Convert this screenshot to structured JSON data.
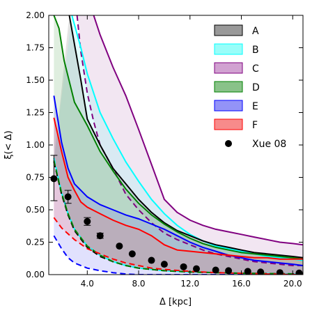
{
  "chart_data": {
    "type": "area",
    "title": "",
    "xlabel": "Δ [kpc]",
    "ylabel": "ξ(< Δ)",
    "xlim": [
      1.0,
      20.8
    ],
    "ylim": [
      0.0,
      2.0
    ],
    "xticks": [
      4.0,
      8.0,
      12.0,
      16.0,
      20.0
    ],
    "xtick_labels": [
      "4.0",
      "8.0",
      "12.0",
      "16.0",
      "20.0"
    ],
    "yticks": [
      0.0,
      0.25,
      0.5,
      0.75,
      1.0,
      1.25,
      1.5,
      1.75,
      2.0
    ],
    "ytick_labels": [
      "0.00",
      "0.25",
      "0.50",
      "0.75",
      "1.00",
      "1.25",
      "1.50",
      "1.75",
      "2.00"
    ],
    "grid": false,
    "legend_position": "top-right",
    "colors": {
      "A": {
        "fill": "#808080",
        "line": "#000000"
      },
      "B": {
        "fill": "#7ffcf8",
        "line": "#00ffff"
      },
      "C": {
        "fill": "#c68bc6",
        "line": "#800080"
      },
      "D": {
        "fill": "#6cb36c",
        "line": "#008000"
      },
      "E": {
        "fill": "#7878f5",
        "line": "#0000ff"
      },
      "F": {
        "fill": "#f56e6e",
        "line": "#ff0000"
      },
      "xue": "#000000"
    },
    "series": [
      {
        "name": "C",
        "upper": [
          [
            4.5,
            2.0
          ],
          [
            5.0,
            1.85
          ],
          [
            6.0,
            1.6
          ],
          [
            7.0,
            1.38
          ],
          [
            8.0,
            1.12
          ],
          [
            9.0,
            0.85
          ],
          [
            10.0,
            0.58
          ],
          [
            11.0,
            0.48
          ],
          [
            12.0,
            0.42
          ],
          [
            13.0,
            0.38
          ],
          [
            14.0,
            0.35
          ],
          [
            15.0,
            0.33
          ],
          [
            16.0,
            0.31
          ],
          [
            17.0,
            0.29
          ],
          [
            18.0,
            0.27
          ],
          [
            19.0,
            0.25
          ],
          [
            20.0,
            0.24
          ],
          [
            20.8,
            0.23
          ]
        ],
        "lower": [
          [
            3.2,
            2.0
          ],
          [
            3.5,
            1.72
          ],
          [
            4.0,
            1.4
          ],
          [
            4.5,
            1.18
          ],
          [
            5.0,
            1.0
          ],
          [
            6.0,
            0.82
          ],
          [
            7.0,
            0.62
          ],
          [
            8.0,
            0.5
          ],
          [
            9.0,
            0.4
          ],
          [
            10.0,
            0.32
          ],
          [
            11.0,
            0.27
          ],
          [
            12.0,
            0.23
          ],
          [
            13.0,
            0.19
          ],
          [
            14.0,
            0.16
          ],
          [
            15.0,
            0.14
          ],
          [
            16.0,
            0.12
          ],
          [
            17.0,
            0.1
          ],
          [
            18.0,
            0.09
          ],
          [
            19.0,
            0.08
          ],
          [
            20.0,
            0.07
          ],
          [
            20.8,
            0.07
          ]
        ]
      },
      {
        "name": "B",
        "upper": [
          [
            2.8,
            2.0
          ],
          [
            3.5,
            1.75
          ],
          [
            4.0,
            1.55
          ],
          [
            5.0,
            1.25
          ],
          [
            6.0,
            1.05
          ],
          [
            7.0,
            0.87
          ],
          [
            8.0,
            0.72
          ],
          [
            9.0,
            0.58
          ],
          [
            10.0,
            0.47
          ],
          [
            11.0,
            0.38
          ],
          [
            12.0,
            0.31
          ],
          [
            13.0,
            0.26
          ],
          [
            14.0,
            0.22
          ],
          [
            15.0,
            0.2
          ],
          [
            16.0,
            0.18
          ],
          [
            17.0,
            0.16
          ],
          [
            18.0,
            0.14
          ],
          [
            19.0,
            0.13
          ],
          [
            20.0,
            0.12
          ],
          [
            20.8,
            0.11
          ]
        ],
        "lower": [
          [
            1.4,
            0.9
          ],
          [
            2.0,
            0.63
          ],
          [
            2.5,
            0.47
          ],
          [
            3.0,
            0.35
          ],
          [
            4.0,
            0.22
          ],
          [
            5.0,
            0.15
          ],
          [
            6.0,
            0.1
          ],
          [
            7.0,
            0.07
          ],
          [
            8.0,
            0.05
          ],
          [
            10.0,
            0.03
          ],
          [
            12.0,
            0.02
          ],
          [
            14.0,
            0.015
          ],
          [
            16.0,
            0.01
          ],
          [
            18.0,
            0.008
          ],
          [
            20.8,
            0.005
          ]
        ]
      },
      {
        "name": "A",
        "upper": [
          [
            2.6,
            2.0
          ],
          [
            3.5,
            1.5
          ],
          [
            4.0,
            1.2
          ],
          [
            5.0,
            1.0
          ],
          [
            6.0,
            0.82
          ],
          [
            7.0,
            0.7
          ],
          [
            8.0,
            0.58
          ],
          [
            9.0,
            0.48
          ],
          [
            10.0,
            0.4
          ],
          [
            11.0,
            0.34
          ],
          [
            12.0,
            0.3
          ],
          [
            13.0,
            0.26
          ],
          [
            14.0,
            0.23
          ],
          [
            15.0,
            0.21
          ],
          [
            16.0,
            0.19
          ],
          [
            17.0,
            0.17
          ],
          [
            18.0,
            0.16
          ],
          [
            19.0,
            0.15
          ],
          [
            20.0,
            0.14
          ],
          [
            20.8,
            0.13
          ]
        ],
        "lower": [
          [
            1.4,
            0.87
          ],
          [
            2.0,
            0.62
          ],
          [
            2.5,
            0.46
          ],
          [
            3.0,
            0.34
          ],
          [
            4.0,
            0.21
          ],
          [
            5.0,
            0.14
          ],
          [
            6.0,
            0.1
          ],
          [
            7.0,
            0.07
          ],
          [
            8.0,
            0.05
          ],
          [
            10.0,
            0.03
          ],
          [
            12.0,
            0.02
          ],
          [
            14.0,
            0.015
          ],
          [
            16.0,
            0.01
          ],
          [
            20.8,
            0.005
          ]
        ]
      },
      {
        "name": "D",
        "upper": [
          [
            1.4,
            2.0
          ],
          [
            1.8,
            1.9
          ],
          [
            2.2,
            1.65
          ],
          [
            3.0,
            1.33
          ],
          [
            4.0,
            1.15
          ],
          [
            5.0,
            0.95
          ],
          [
            6.0,
            0.8
          ],
          [
            7.0,
            0.66
          ],
          [
            8.0,
            0.55
          ],
          [
            9.0,
            0.46
          ],
          [
            10.0,
            0.39
          ],
          [
            11.0,
            0.33
          ],
          [
            12.0,
            0.28
          ],
          [
            13.0,
            0.24
          ],
          [
            14.0,
            0.21
          ],
          [
            15.0,
            0.19
          ],
          [
            16.0,
            0.17
          ],
          [
            17.0,
            0.16
          ],
          [
            18.0,
            0.15
          ],
          [
            19.0,
            0.14
          ],
          [
            20.0,
            0.13
          ],
          [
            20.8,
            0.12
          ]
        ],
        "lower": [
          [
            1.4,
            0.88
          ],
          [
            2.0,
            0.63
          ],
          [
            2.5,
            0.47
          ],
          [
            3.0,
            0.35
          ],
          [
            4.0,
            0.22
          ],
          [
            5.0,
            0.15
          ],
          [
            6.0,
            0.1
          ],
          [
            7.0,
            0.07
          ],
          [
            8.0,
            0.05
          ],
          [
            10.0,
            0.03
          ],
          [
            12.0,
            0.02
          ],
          [
            14.0,
            0.015
          ],
          [
            16.0,
            0.01
          ],
          [
            20.8,
            0.005
          ]
        ]
      },
      {
        "name": "E",
        "upper": [
          [
            1.4,
            1.38
          ],
          [
            2.0,
            1.02
          ],
          [
            2.5,
            0.82
          ],
          [
            3.0,
            0.7
          ],
          [
            4.0,
            0.6
          ],
          [
            5.0,
            0.54
          ],
          [
            6.0,
            0.5
          ],
          [
            7.0,
            0.46
          ],
          [
            8.0,
            0.43
          ],
          [
            9.0,
            0.39
          ],
          [
            10.0,
            0.35
          ],
          [
            11.0,
            0.3
          ],
          [
            12.0,
            0.25
          ],
          [
            13.0,
            0.21
          ],
          [
            14.0,
            0.18
          ],
          [
            15.0,
            0.15
          ],
          [
            16.0,
            0.13
          ],
          [
            17.0,
            0.11
          ],
          [
            18.0,
            0.1
          ],
          [
            19.0,
            0.09
          ],
          [
            20.0,
            0.08
          ],
          [
            20.8,
            0.07
          ]
        ],
        "lower": [
          [
            1.4,
            0.3
          ],
          [
            2.0,
            0.2
          ],
          [
            2.5,
            0.13
          ],
          [
            3.0,
            0.09
          ],
          [
            4.0,
            0.05
          ],
          [
            5.0,
            0.03
          ],
          [
            6.0,
            0.015
          ],
          [
            7.0,
            0.005
          ],
          [
            8.0,
            0.0
          ],
          [
            20.8,
            0.0
          ]
        ]
      },
      {
        "name": "F",
        "upper": [
          [
            1.4,
            1.21
          ],
          [
            2.0,
            0.95
          ],
          [
            2.5,
            0.75
          ],
          [
            3.0,
            0.65
          ],
          [
            3.5,
            0.56
          ],
          [
            4.0,
            0.52
          ],
          [
            5.0,
            0.47
          ],
          [
            6.0,
            0.42
          ],
          [
            7.0,
            0.38
          ],
          [
            8.0,
            0.35
          ],
          [
            9.0,
            0.3
          ],
          [
            10.0,
            0.23
          ],
          [
            11.0,
            0.19
          ],
          [
            12.0,
            0.18
          ],
          [
            13.0,
            0.17
          ],
          [
            14.0,
            0.16
          ],
          [
            15.0,
            0.15
          ],
          [
            16.0,
            0.14
          ],
          [
            17.0,
            0.13
          ],
          [
            18.0,
            0.13
          ],
          [
            19.0,
            0.12
          ],
          [
            20.0,
            0.12
          ],
          [
            20.8,
            0.12
          ]
        ],
        "lower": [
          [
            1.4,
            0.44
          ],
          [
            2.0,
            0.36
          ],
          [
            3.0,
            0.27
          ],
          [
            4.0,
            0.2
          ],
          [
            5.0,
            0.16
          ],
          [
            6.0,
            0.12
          ],
          [
            7.0,
            0.09
          ],
          [
            8.0,
            0.07
          ],
          [
            9.0,
            0.05
          ],
          [
            10.0,
            0.04
          ],
          [
            12.0,
            0.025
          ],
          [
            14.0,
            0.015
          ],
          [
            16.0,
            0.01
          ],
          [
            18.0,
            0.005
          ],
          [
            20.8,
            0.0
          ]
        ]
      }
    ],
    "xue08": {
      "name": "Xue 08",
      "x": [
        1.4,
        2.5,
        4.0,
        5.0,
        6.5,
        7.5,
        9.0,
        10.0,
        11.5,
        12.5,
        14.0,
        15.0,
        16.5,
        17.5,
        19.0,
        20.5
      ],
      "y": [
        0.74,
        0.6,
        0.41,
        0.3,
        0.22,
        0.16,
        0.11,
        0.08,
        0.06,
        0.045,
        0.035,
        0.03,
        0.025,
        0.02,
        0.015,
        0.012
      ],
      "err_low": [
        0.17,
        0.05,
        0.03,
        0.02,
        0.015,
        0.01,
        0.01,
        0.01,
        0.01,
        0.008,
        0.008,
        0.008,
        0.008,
        0.008,
        0.008,
        0.008
      ],
      "err_high": [
        0.18,
        0.05,
        0.03,
        0.02,
        0.015,
        0.01,
        0.01,
        0.01,
        0.01,
        0.008,
        0.008,
        0.008,
        0.008,
        0.008,
        0.008,
        0.008
      ]
    }
  }
}
